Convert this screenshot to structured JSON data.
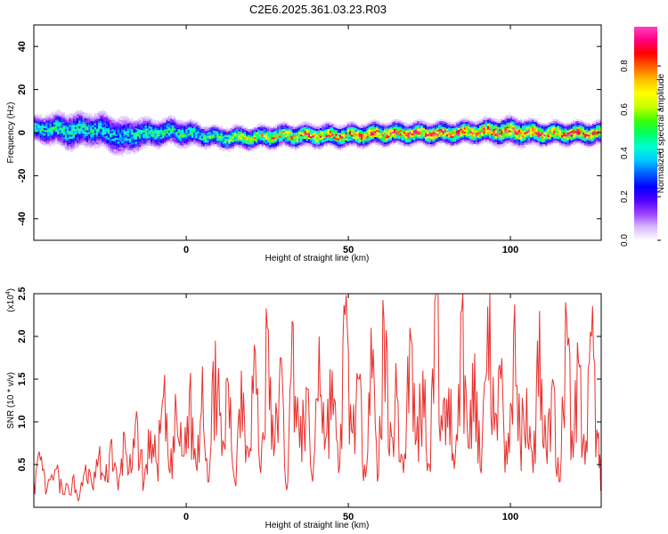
{
  "title": "C2E6.2025.361.03.23.R03",
  "chart_data": [
    {
      "type": "heatmap",
      "xlabel": "Height of straight line (km)",
      "ylabel": "Frequency (Hz)",
      "xlim": [
        -47,
        128
      ],
      "ylim": [
        -50,
        50
      ],
      "xticks": [
        0,
        50,
        100
      ],
      "yticks": [
        40,
        20,
        0,
        -20,
        -40
      ],
      "grid": false,
      "colorbar": {
        "label": "Normalized spectral amplitude",
        "range": [
          0.0,
          0.98
        ],
        "ticks": [
          "0.0",
          "0.2",
          "0.4",
          "0.6",
          "0.8"
        ],
        "colors": [
          "#ffffff",
          "#d8b8ff",
          "#9a40ff",
          "#5000ff",
          "#0000ff",
          "#0060ff",
          "#00c8ff",
          "#00ffd0",
          "#00ff60",
          "#40ff00",
          "#c8ff00",
          "#ffff00",
          "#ffc000",
          "#ff6000",
          "#ff0000",
          "#ff0080",
          "#ff40c0"
        ]
      },
      "band": {
        "x": [
          -47,
          -40,
          -35,
          -30,
          -25,
          -20,
          -15,
          -10,
          -5,
          0,
          5,
          10,
          20,
          30,
          40,
          50,
          60,
          70,
          80,
          90,
          100,
          110,
          120,
          128
        ],
        "center_hz": [
          2,
          2,
          1,
          2,
          1,
          -2,
          0,
          0,
          1,
          0,
          -1,
          -2,
          -2,
          -1,
          -1,
          -1,
          0,
          0,
          0,
          1,
          1,
          0,
          0,
          0
        ],
        "halfwidth_hz": [
          5,
          6,
          7,
          6,
          7,
          7,
          6,
          5,
          5,
          5,
          4,
          4,
          4,
          4,
          4,
          4,
          4,
          4,
          4,
          4,
          5,
          4,
          4,
          4
        ],
        "peak_amplitude": [
          0.45,
          0.5,
          0.5,
          0.48,
          0.45,
          0.42,
          0.5,
          0.5,
          0.5,
          0.5,
          0.52,
          0.6,
          0.7,
          0.8,
          0.85,
          0.85,
          0.9,
          0.9,
          0.92,
          0.9,
          0.9,
          0.92,
          0.9,
          0.85
        ]
      }
    },
    {
      "type": "line",
      "xlabel": "Height of straight line (km)",
      "ylabel": "SNR (10 * v/v)",
      "y_multiplier": "(x10",
      "y_multiplier_exp": "4",
      "y_multiplier_close": ")",
      "xlim": [
        -47,
        128
      ],
      "ylim": [
        0,
        2.5
      ],
      "xticks": [
        0,
        50,
        100
      ],
      "yticks": [
        "0.5",
        "1.0",
        "1.5",
        "2.0",
        "2.5"
      ],
      "grid": false,
      "series": [
        {
          "color": "#e8302c",
          "x": [
            -47,
            -45,
            -43,
            -40,
            -38,
            -35,
            -33,
            -31,
            -29,
            -27,
            -25,
            -23,
            -21,
            -19,
            -17,
            -15,
            -13,
            -11,
            -9,
            -7,
            -5,
            -3,
            -1,
            1,
            3,
            5,
            7,
            9,
            11,
            13,
            15,
            17,
            19,
            21,
            23,
            25,
            27,
            29,
            31,
            33,
            35,
            37,
            39,
            41,
            43,
            45,
            47,
            49,
            51,
            53,
            55,
            57,
            59,
            61,
            63,
            65,
            67,
            69,
            71,
            73,
            75,
            77,
            79,
            81,
            83,
            85,
            87,
            89,
            91,
            93,
            95,
            97,
            99,
            101,
            103,
            105,
            107,
            109,
            111,
            113,
            115,
            117,
            119,
            121,
            123,
            125,
            127,
            128
          ],
          "values": [
            0.3,
            0.55,
            0.2,
            0.45,
            0.15,
            0.35,
            0.1,
            0.5,
            0.25,
            0.6,
            0.3,
            0.8,
            0.2,
            0.85,
            0.4,
            1.0,
            0.3,
            0.9,
            0.5,
            1.3,
            0.4,
            1.1,
            0.6,
            1.35,
            0.5,
            1.65,
            0.3,
            1.95,
            0.6,
            1.45,
            0.3,
            1.6,
            0.7,
            1.9,
            0.4,
            2.1,
            0.6,
            1.75,
            0.2,
            2.15,
            0.7,
            1.4,
            0.3,
            2.0,
            0.8,
            1.6,
            0.4,
            2.25,
            0.9,
            1.5,
            0.5,
            2.1,
            0.3,
            2.2,
            1.0,
            1.3,
            0.4,
            2.1,
            0.8,
            1.6,
            0.5,
            2.5,
            0.9,
            1.4,
            0.6,
            2.3,
            0.7,
            1.8,
            0.4,
            2.35,
            0.9,
            1.5,
            0.5,
            2.05,
            0.8,
            1.4,
            0.4,
            2.3,
            0.7,
            1.5,
            0.3,
            2.4,
            0.9,
            1.7,
            0.5,
            2.0,
            0.8,
            0.3
          ]
        }
      ]
    }
  ]
}
